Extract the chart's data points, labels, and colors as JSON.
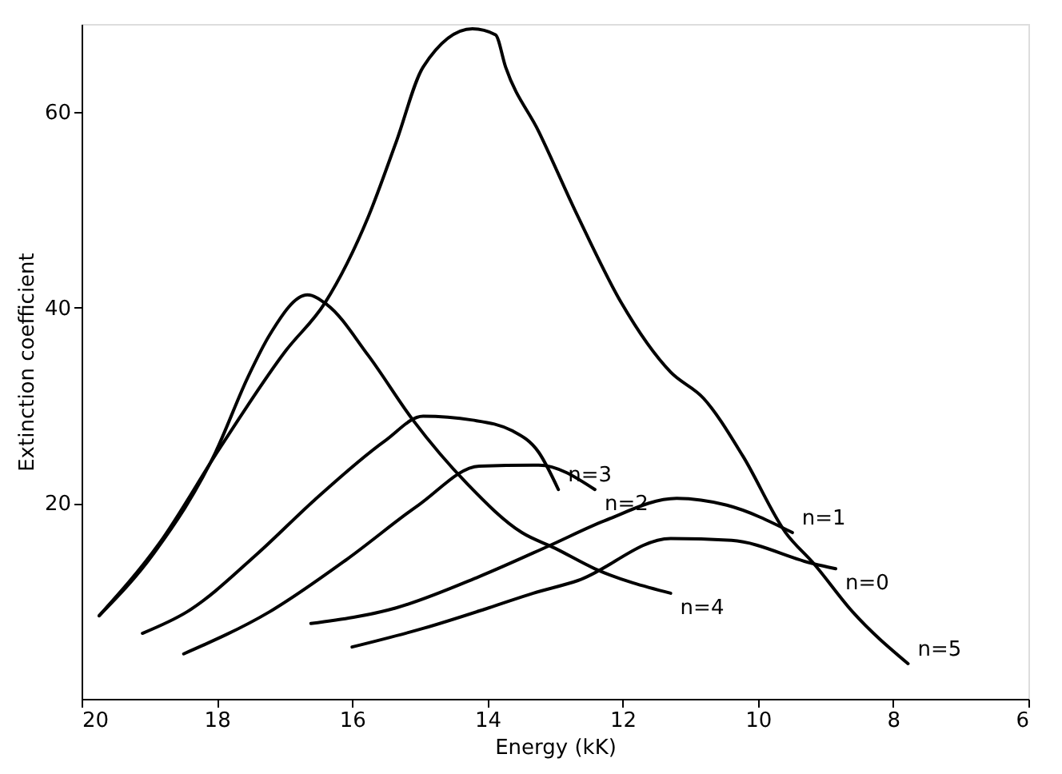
{
  "chart_data": {
    "type": "line",
    "xlabel": "Energy (kK)",
    "ylabel": "Extinction coefficient",
    "xlim": [
      20,
      6
    ],
    "xticks": [
      20,
      18,
      16,
      14,
      12,
      10,
      8,
      6
    ],
    "ylim": [
      0,
      69
    ],
    "yticks": [
      20,
      40,
      60
    ],
    "grid": false,
    "legend": false,
    "series": [
      {
        "name": "n=5",
        "color": "#000000",
        "x": [
          19.74,
          18.85,
          17.95,
          16.98,
          16.4,
          15.76,
          15.35,
          14.95,
          14.22,
          13.88,
          13.73,
          13.24,
          12.66,
          12.02,
          11.29,
          10.8,
          10.22,
          9.59,
          9.17,
          8.6,
          7.78
        ],
        "values": [
          8.5,
          15.9,
          25.7,
          35.6,
          40.5,
          49.3,
          56.9,
          64.6,
          68.5,
          67.9,
          64.6,
          58,
          49.3,
          40.5,
          33.4,
          30.7,
          24.8,
          17,
          13.8,
          8.9,
          3.6
        ]
      },
      {
        "name": "n=4",
        "color": "#000000",
        "x": [
          19.74,
          18.93,
          18.02,
          17.54,
          17.22,
          16.66,
          16.37,
          15.76,
          15.1,
          14.3,
          13.49,
          13.0,
          12.41,
          11.29
        ],
        "values": [
          8.5,
          14.9,
          25.2,
          32.9,
          37.2,
          41.3,
          40.3,
          35.1,
          28.5,
          22,
          17,
          15.4,
          13.3,
          10.8
        ]
      },
      {
        "name": "n=3",
        "color": "#000000",
        "x": [
          19.1,
          18.44,
          17.39,
          16.56,
          15.51,
          14.95,
          14.22,
          13.63,
          13.24,
          12.95
        ],
        "values": [
          6.7,
          8.9,
          14.9,
          20.3,
          26.4,
          28.9,
          28.5,
          27.4,
          25.2,
          21.4
        ]
      },
      {
        "name": "n=2",
        "color": "#000000",
        "x": [
          18.49,
          17.22,
          16.07,
          15.02,
          14.12,
          13.32,
          13.24,
          12.41
        ],
        "values": [
          4.6,
          8.9,
          14.3,
          19.8,
          23.8,
          23.9,
          23.9,
          21.4
        ]
      },
      {
        "name": "n=1",
        "color": "#000000",
        "x": [
          16.61,
          15.35,
          14.12,
          13.07,
          12.27,
          11.2,
          10.46,
          9.49
        ],
        "values": [
          7.7,
          9.3,
          12.5,
          15.7,
          18.2,
          20.5,
          19.8,
          17.0
        ]
      },
      {
        "name": "n=0",
        "color": "#000000",
        "x": [
          16.0,
          14.95,
          13.98,
          13.32,
          12.66,
          11.29,
          10.39,
          9.17,
          8.85
        ],
        "values": [
          5.3,
          7.2,
          9.3,
          10.8,
          12.1,
          16.4,
          16.2,
          13.8,
          13.3
        ]
      }
    ]
  }
}
